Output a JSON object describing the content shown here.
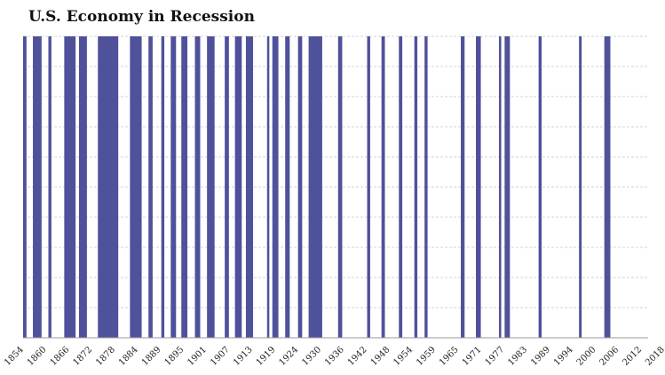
{
  "chart_data": {
    "type": "bar",
    "title": "U.S. Economy in Recession",
    "xlabel": "",
    "ylabel": "",
    "series": [
      {
        "values": [
          {
            "start": 1854.0,
            "end": 1854.9
          },
          {
            "start": 1856.6,
            "end": 1858.9
          },
          {
            "start": 1860.7,
            "end": 1861.5
          },
          {
            "start": 1864.9,
            "end": 1867.9
          },
          {
            "start": 1868.8,
            "end": 1870.9
          },
          {
            "start": 1873.8,
            "end": 1879.2
          },
          {
            "start": 1882.3,
            "end": 1885.4
          },
          {
            "start": 1887.2,
            "end": 1888.3
          },
          {
            "start": 1890.6,
            "end": 1891.4
          },
          {
            "start": 1893.1,
            "end": 1894.5
          },
          {
            "start": 1895.9,
            "end": 1897.5
          },
          {
            "start": 1899.5,
            "end": 1900.9
          },
          {
            "start": 1902.7,
            "end": 1904.7
          },
          {
            "start": 1907.4,
            "end": 1908.5
          },
          {
            "start": 1910.1,
            "end": 1911.9
          },
          {
            "start": 1913.0,
            "end": 1914.9
          },
          {
            "start": 1918.6,
            "end": 1919.2
          },
          {
            "start": 1920.0,
            "end": 1921.6
          },
          {
            "start": 1923.4,
            "end": 1924.6
          },
          {
            "start": 1926.8,
            "end": 1927.9
          },
          {
            "start": 1929.6,
            "end": 1933.2
          },
          {
            "start": 1937.4,
            "end": 1938.5
          },
          {
            "start": 1945.1,
            "end": 1945.9
          },
          {
            "start": 1948.9,
            "end": 1949.8
          },
          {
            "start": 1953.5,
            "end": 1954.4
          },
          {
            "start": 1957.6,
            "end": 1958.4
          },
          {
            "start": 1960.3,
            "end": 1961.1
          },
          {
            "start": 1969.9,
            "end": 1970.9
          },
          {
            "start": 1973.9,
            "end": 1975.2
          },
          {
            "start": 1980.0,
            "end": 1980.6
          },
          {
            "start": 1981.5,
            "end": 1982.9
          },
          {
            "start": 1990.5,
            "end": 1991.3
          },
          {
            "start": 2001.2,
            "end": 2001.9
          },
          {
            "start": 2007.9,
            "end": 2009.5
          }
        ]
      }
    ],
    "x_ticks": [
      "1854",
      "1860",
      "1866",
      "1872",
      "1878",
      "1884",
      "1889",
      "1895",
      "1901",
      "1907",
      "1913",
      "1919",
      "1924",
      "1930",
      "1936",
      "1942",
      "1948",
      "1954",
      "1959",
      "1965",
      "1971",
      "1977",
      "1983",
      "1989",
      "1994",
      "2000",
      "2006",
      "2012",
      "2018"
    ],
    "xlim": [
      1854,
      2019.5
    ],
    "grid": true,
    "colors": {
      "bar": "#4f519b",
      "grid": "#c8c8c8",
      "axis": "#999999"
    }
  }
}
